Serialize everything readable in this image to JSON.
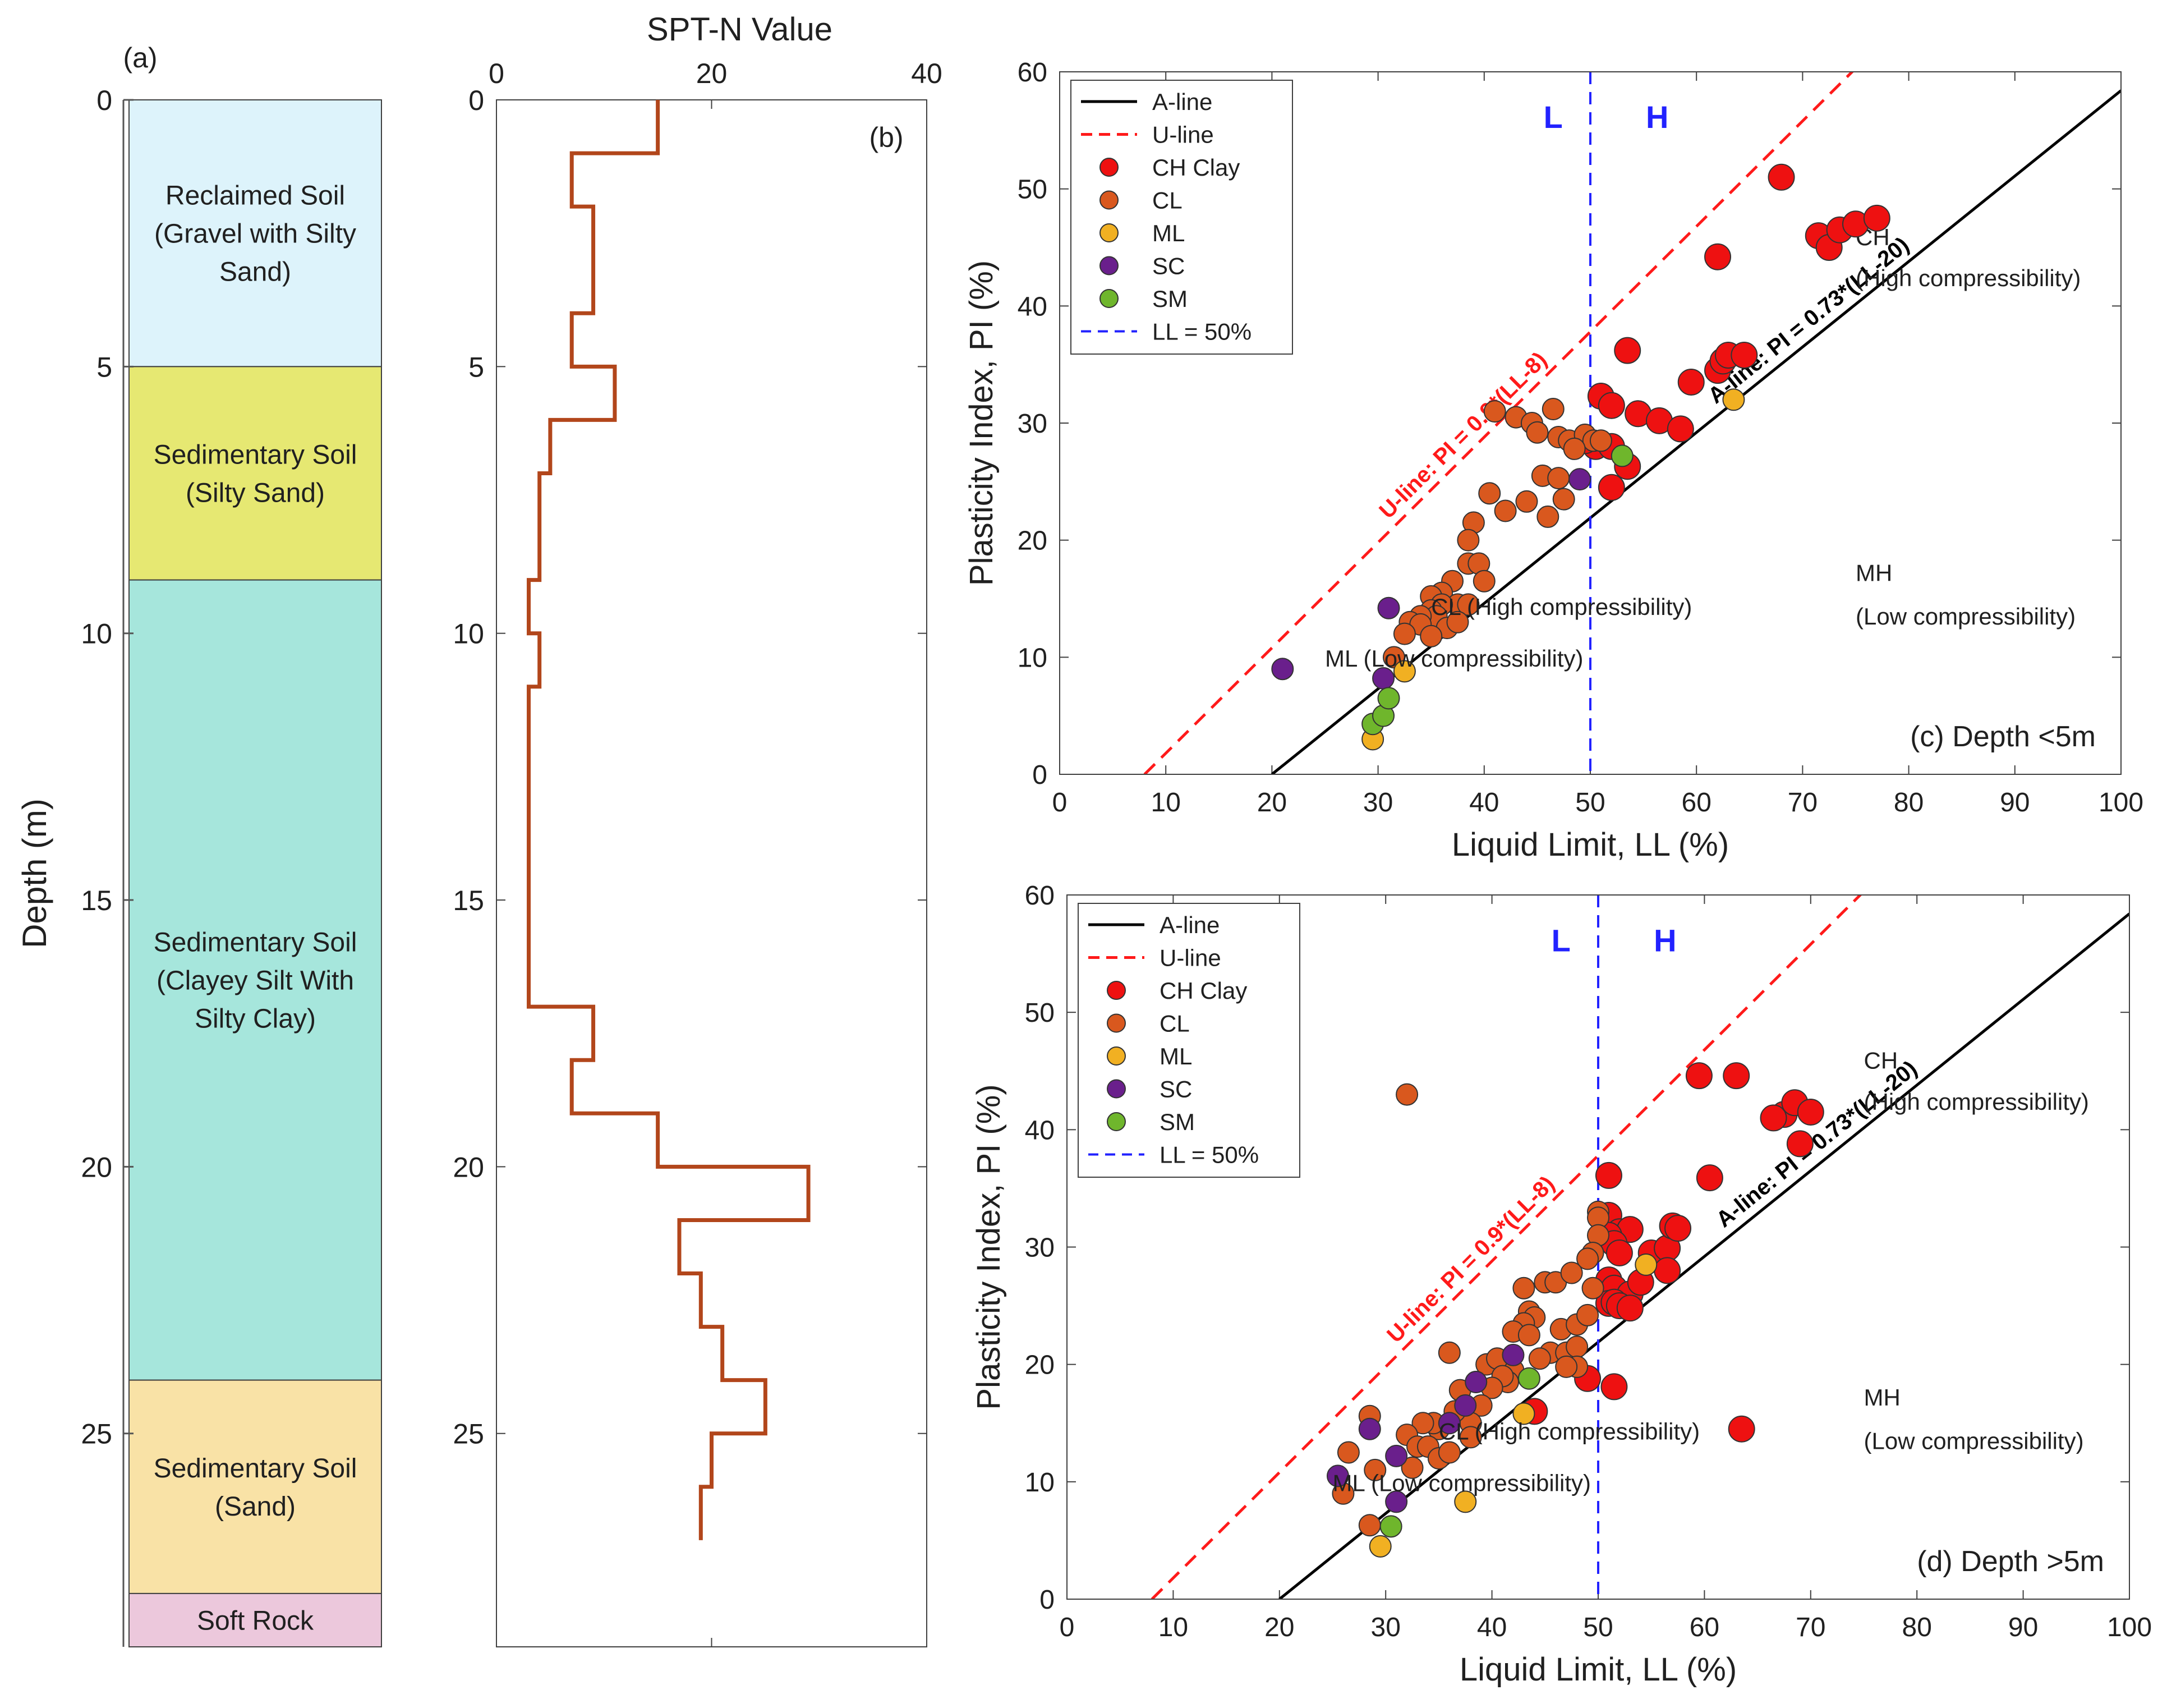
{
  "chart_data": [
    {
      "id": "a",
      "type": "table",
      "panel_label": "(a)",
      "ylabel": "Depth (m)",
      "ylim": [
        0,
        29
      ],
      "yticks": [
        0,
        5,
        10,
        15,
        20,
        25
      ],
      "layers": [
        {
          "top": 0,
          "bottom": 5,
          "lines": [
            "Reclaimed Soil",
            "(Gravel with Silty",
            "Sand)"
          ],
          "color": "#ddf3fb"
        },
        {
          "top": 5,
          "bottom": 9,
          "lines": [
            "Sedimentary Soil",
            "(Silty Sand)"
          ],
          "color": "#e6e872"
        },
        {
          "top": 9,
          "bottom": 24,
          "lines": [
            "Sedimentary Soil",
            "(Clayey Silt With",
            "Silty Clay)"
          ],
          "color": "#a6e6dc"
        },
        {
          "top": 24,
          "bottom": 28,
          "lines": [
            "Sedimentary Soil",
            "(Sand)"
          ],
          "color": "#f9e2a6"
        },
        {
          "top": 28,
          "bottom": 29,
          "lines": [
            "Soft Rock"
          ],
          "color": "#ecc8dc"
        }
      ]
    },
    {
      "id": "b",
      "type": "line",
      "panel_label": "(b)",
      "title": "SPT-N Value",
      "xlim": [
        0,
        40
      ],
      "xticks": [
        0,
        20,
        40
      ],
      "ylim": [
        0,
        29
      ],
      "yticks": [
        0,
        5,
        10,
        15,
        20,
        25
      ],
      "color": "#b2461b",
      "profile": [
        {
          "top": 0,
          "bottom": 1,
          "n": 15
        },
        {
          "top": 1,
          "bottom": 2,
          "n": 7
        },
        {
          "top": 2,
          "bottom": 4,
          "n": 9
        },
        {
          "top": 4,
          "bottom": 5,
          "n": 7
        },
        {
          "top": 5,
          "bottom": 6,
          "n": 11
        },
        {
          "top": 6,
          "bottom": 7,
          "n": 5
        },
        {
          "top": 7,
          "bottom": 9,
          "n": 4
        },
        {
          "top": 9,
          "bottom": 10,
          "n": 3
        },
        {
          "top": 10,
          "bottom": 11,
          "n": 4
        },
        {
          "top": 11,
          "bottom": 17,
          "n": 3
        },
        {
          "top": 17,
          "bottom": 18,
          "n": 9
        },
        {
          "top": 18,
          "bottom": 19,
          "n": 7
        },
        {
          "top": 19,
          "bottom": 20,
          "n": 15
        },
        {
          "top": 20,
          "bottom": 21,
          "n": 29
        },
        {
          "top": 21,
          "bottom": 22,
          "n": 17
        },
        {
          "top": 22,
          "bottom": 23,
          "n": 19
        },
        {
          "top": 23,
          "bottom": 24,
          "n": 21
        },
        {
          "top": 24,
          "bottom": 25,
          "n": 25
        },
        {
          "top": 25,
          "bottom": 26,
          "n": 20
        },
        {
          "top": 26,
          "bottom": 27,
          "n": 19
        }
      ]
    },
    {
      "id": "c",
      "type": "scatter",
      "annotation": "(c) Depth <5m",
      "xlabel": "Liquid Limit, LL (%)",
      "ylabel": "Plasticity Index, PI (%)",
      "xlim": [
        0,
        100
      ],
      "ylim": [
        0,
        60
      ],
      "xticks": [
        0,
        10,
        20,
        30,
        40,
        50,
        60,
        70,
        80,
        90,
        100
      ],
      "yticks": [
        0,
        10,
        20,
        30,
        40,
        50,
        60
      ],
      "lines": {
        "a_line_label": "A-line: PI = 0.73*(LL-20)",
        "u_line_label": "U-line: PI = 0.9*(LL-8)",
        "ll_value": 50
      },
      "zone_labels": {
        "L": "L",
        "H": "H",
        "CH": [
          "CH",
          "(High compressibility)"
        ],
        "MH": [
          "MH",
          "(Low compressibility)"
        ],
        "CL": "CL (High compressibility)",
        "ML": "ML (Low compressibility)"
      },
      "legend": {
        "position": "top-left",
        "entries": [
          "A-line",
          "U-line",
          "CH Clay",
          "CL",
          "ML",
          "SC",
          "SM",
          "LL = 50%"
        ]
      },
      "series": [
        {
          "name": "CH Clay",
          "color": "#ee1111",
          "size": "large",
          "points": [
            [
              68,
              51
            ],
            [
              71.5,
              46
            ],
            [
              72.5,
              45
            ],
            [
              73.5,
              46.5
            ],
            [
              75,
              47
            ],
            [
              77,
              47.5
            ],
            [
              62,
              44.2
            ],
            [
              53.5,
              36.2
            ],
            [
              51,
              32.3
            ],
            [
              52,
              31.5
            ],
            [
              54.5,
              30.8
            ],
            [
              56.5,
              30.2
            ],
            [
              58.5,
              29.5
            ],
            [
              50.5,
              28
            ],
            [
              52,
              28
            ],
            [
              49.5,
              28.5
            ],
            [
              53.5,
              26.3
            ],
            [
              52,
              24.5
            ],
            [
              59.5,
              33.5
            ],
            [
              62,
              34.5
            ],
            [
              62.5,
              35.3
            ],
            [
              63,
              35.8
            ],
            [
              64.5,
              35.8
            ]
          ]
        },
        {
          "name": "CL",
          "color": "#d9581e",
          "size": "small",
          "points": [
            [
              41,
              31
            ],
            [
              43,
              30.5
            ],
            [
              44.5,
              30
            ],
            [
              45,
              29.2
            ],
            [
              46.5,
              31.2
            ],
            [
              47,
              28.8
            ],
            [
              48,
              28.5
            ],
            [
              49.5,
              29
            ],
            [
              50.3,
              28.5
            ],
            [
              51,
              28.5
            ],
            [
              48.5,
              27.8
            ],
            [
              40.5,
              24
            ],
            [
              42,
              22.5
            ],
            [
              44,
              23.3
            ],
            [
              45.5,
              25.5
            ],
            [
              47,
              25.3
            ],
            [
              46,
              22
            ],
            [
              47.5,
              23.5
            ],
            [
              39,
              21.5
            ],
            [
              38.5,
              20
            ],
            [
              38.5,
              18
            ],
            [
              39.5,
              18
            ],
            [
              40,
              16.5
            ],
            [
              37,
              16.5
            ],
            [
              36,
              15.5
            ],
            [
              35,
              15.2
            ],
            [
              37.5,
              14.5
            ],
            [
              38.5,
              14.5
            ],
            [
              36,
              14.5
            ],
            [
              35,
              14
            ],
            [
              35.5,
              13.5
            ],
            [
              34,
              13.5
            ],
            [
              33,
              13
            ],
            [
              34,
              12.8
            ],
            [
              36.5,
              12.5
            ],
            [
              35,
              11.8
            ],
            [
              37.5,
              13
            ],
            [
              32.5,
              12
            ],
            [
              31.5,
              10
            ]
          ]
        },
        {
          "name": "ML",
          "color": "#f1b022",
          "size": "small",
          "points": [
            [
              63.5,
              32
            ],
            [
              29.5,
              3
            ],
            [
              32.5,
              8.8
            ]
          ]
        },
        {
          "name": "SC",
          "color": "#6a1f8c",
          "size": "small",
          "points": [
            [
              49,
              25.2
            ],
            [
              31,
              14.2
            ],
            [
              21,
              9
            ],
            [
              30.5,
              8.2
            ]
          ]
        },
        {
          "name": "SM",
          "color": "#6fb62c",
          "size": "small",
          "points": [
            [
              53,
              27.2
            ],
            [
              29.5,
              4.3
            ],
            [
              30.5,
              5
            ],
            [
              31,
              6.5
            ]
          ]
        }
      ]
    },
    {
      "id": "d",
      "type": "scatter",
      "annotation": "(d) Depth >5m",
      "xlabel": "Liquid Limit, LL (%)",
      "ylabel": "Plasticity Index, PI (%)",
      "xlim": [
        0,
        100
      ],
      "ylim": [
        0,
        60
      ],
      "xticks": [
        0,
        10,
        20,
        30,
        40,
        50,
        60,
        70,
        80,
        90,
        100
      ],
      "yticks": [
        0,
        10,
        20,
        30,
        40,
        50,
        60
      ],
      "lines": {
        "a_line_label": "A-line: PI = 0.73*(LL-20)",
        "u_line_label": "U-line: PI = 0.9*(LL-8)",
        "ll_value": 50
      },
      "zone_labels": {
        "L": "L",
        "H": "H",
        "CH": [
          "CH",
          "(High compressibility)"
        ],
        "MH": [
          "MH",
          "(Low compressibility)"
        ],
        "CL": "CL (High compressibility)",
        "ML": "ML (Low compressibility)"
      },
      "legend": {
        "position": "top-left",
        "entries": [
          "A-line",
          "U-line",
          "CH Clay",
          "CL",
          "ML",
          "SC",
          "SM",
          "LL = 50%"
        ]
      },
      "series": [
        {
          "name": "CH Clay",
          "color": "#ee1111",
          "size": "large",
          "points": [
            [
              59.5,
              44.6
            ],
            [
              63,
              44.6
            ],
            [
              67.5,
              41.3
            ],
            [
              68.5,
              42.3
            ],
            [
              70,
              41.5
            ],
            [
              66.5,
              41
            ],
            [
              69,
              38.8
            ],
            [
              51,
              36.1
            ],
            [
              60.5,
              35.9
            ],
            [
              51,
              32.7
            ],
            [
              52,
              31.3
            ],
            [
              53,
              31.5
            ],
            [
              55,
              29.5
            ],
            [
              56.5,
              29.9
            ],
            [
              57,
              31.8
            ],
            [
              57.5,
              31.6
            ],
            [
              51,
              31
            ],
            [
              51.5,
              30.3
            ],
            [
              52,
              29.5
            ],
            [
              51,
              27.2
            ],
            [
              51.5,
              26.5
            ],
            [
              53,
              26
            ],
            [
              54,
              27
            ],
            [
              56.5,
              28
            ],
            [
              51,
              25.2
            ],
            [
              51.5,
              25.3
            ],
            [
              52,
              25
            ],
            [
              53,
              24.8
            ],
            [
              49,
              18.8
            ],
            [
              51.5,
              18.1
            ],
            [
              63.5,
              14.5
            ],
            [
              44,
              16
            ]
          ]
        },
        {
          "name": "CL",
          "color": "#d9581e",
          "size": "small",
          "points": [
            [
              32,
              43
            ],
            [
              50,
              33
            ],
            [
              50,
              32.5
            ],
            [
              50,
              31
            ],
            [
              49.5,
              29.5
            ],
            [
              49,
              29
            ],
            [
              49.5,
              26.5
            ],
            [
              45,
              27
            ],
            [
              46,
              27
            ],
            [
              47.5,
              27.8
            ],
            [
              43,
              26.5
            ],
            [
              43.5,
              24.5
            ],
            [
              44,
              24
            ],
            [
              43,
              23.5
            ],
            [
              42,
              22.8
            ],
            [
              43.5,
              22.5
            ],
            [
              46.5,
              23
            ],
            [
              48,
              23.4
            ],
            [
              49,
              24.2
            ],
            [
              45.5,
              21
            ],
            [
              47,
              21
            ],
            [
              48,
              21.5
            ],
            [
              48,
              19.8
            ],
            [
              47,
              19.8
            ],
            [
              44.5,
              20.5
            ],
            [
              42,
              19.5
            ],
            [
              41.5,
              18.5
            ],
            [
              39.5,
              20
            ],
            [
              40.5,
              20.5
            ],
            [
              41,
              19
            ],
            [
              40,
              18
            ],
            [
              38.5,
              18.5
            ],
            [
              39,
              16.5
            ],
            [
              37,
              17.8
            ],
            [
              36,
              21
            ],
            [
              38,
              15
            ],
            [
              36.5,
              16
            ],
            [
              38,
              13.8
            ],
            [
              35,
              14.5
            ],
            [
              34.5,
              15
            ],
            [
              33.5,
              15
            ],
            [
              32,
              14
            ],
            [
              33,
              13
            ],
            [
              34,
              13
            ],
            [
              35,
              12
            ],
            [
              36,
              12.5
            ],
            [
              32.5,
              11.2
            ],
            [
              29,
              11
            ],
            [
              28.5,
              15.6
            ],
            [
              26.5,
              12.5
            ],
            [
              26,
              9
            ],
            [
              28.5,
              6.3
            ]
          ]
        },
        {
          "name": "ML",
          "color": "#f1b022",
          "size": "small",
          "points": [
            [
              54.5,
              28.5
            ],
            [
              43,
              15.8
            ],
            [
              37.5,
              8.3
            ],
            [
              29.5,
              4.5
            ]
          ]
        },
        {
          "name": "SC",
          "color": "#6a1f8c",
          "size": "small",
          "points": [
            [
              42,
              20.8
            ],
            [
              38.5,
              18.5
            ],
            [
              37.5,
              16.5
            ],
            [
              36,
              15
            ],
            [
              28.5,
              14.5
            ],
            [
              31,
              12.2
            ],
            [
              25.5,
              10.5
            ],
            [
              31,
              8.3
            ]
          ]
        },
        {
          "name": "SM",
          "color": "#6fb62c",
          "size": "small",
          "points": [
            [
              43.5,
              18.8
            ],
            [
              30.5,
              6.2
            ]
          ]
        }
      ]
    }
  ]
}
